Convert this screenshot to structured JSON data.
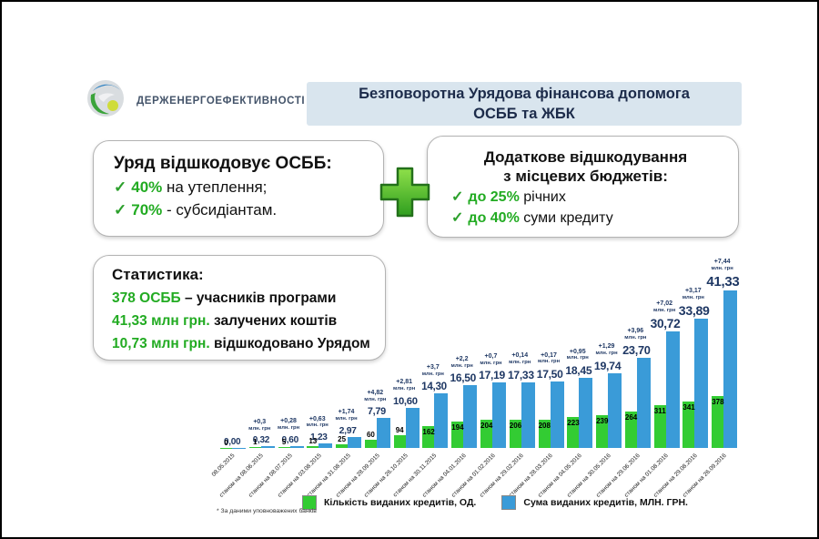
{
  "logo": {
    "text": "Держенергоефективності"
  },
  "title": {
    "line1": "Безповоротна Урядова фінансова допомога",
    "line2": "ОСББ та ЖБК"
  },
  "icons": {
    "check": "✓",
    "plus": "+"
  },
  "left_box": {
    "heading": "Уряд відшкодовує ОСББ:",
    "items": [
      {
        "highlight": "40%",
        "rest": " на утеплення;"
      },
      {
        "highlight": "70%",
        "rest": " - субсидіантам."
      }
    ]
  },
  "right_box": {
    "heading_line1": "Додаткове відшкодування",
    "heading_line2": "з місцевих бюджетів:",
    "items": [
      {
        "highlight": "до 25%",
        "rest": " річних"
      },
      {
        "highlight": "до 40%",
        "rest": " суми кредиту"
      }
    ]
  },
  "stats_box": {
    "heading": "Статистика:",
    "items": [
      {
        "highlight": "378 ОСББ",
        "rest": " – учасників програми"
      },
      {
        "highlight": "41,33 млн грн.",
        "rest": " залучених коштів"
      },
      {
        "highlight": "10,73 млн грн.",
        "rest": " відшкодовано Урядом"
      }
    ]
  },
  "footnote": "* За даними уповноважених банків",
  "chart_data": {
    "type": "bar",
    "categories": [
      "08.05.2015",
      "станом на 08.06.2015",
      "станом на 08.07.2015",
      "станом на 03.08.2015",
      "станом на 31.08.2015",
      "станом на 28.09.2015",
      "станом на 26.10.2015",
      "станом на 30.11.2015",
      "станом на 04.01.2016",
      "станом на 01.02.2016",
      "станом на 29.02.2016",
      "станом на 28.03.2016",
      "станом на 04.05.2016",
      "станом на 30.05.2016",
      "станом на 29.06.2016",
      "станом на 01.08.2016",
      "станом на 29.08.2016",
      "станом на 26.09.2016"
    ],
    "series": [
      {
        "name": "Кількість виданих кредитів, ОД.",
        "color": "#33cc33",
        "values": [
          0,
          1,
          5,
          13,
          25,
          60,
          94,
          162,
          194,
          204,
          206,
          208,
          223,
          239,
          264,
          311,
          341,
          378
        ]
      },
      {
        "name": "Сума виданих кредитів, МЛН. ГРН.",
        "color": "#3a9bd8",
        "values": [
          "0,00",
          "0,32",
          "0,60",
          "1,23",
          "2,97",
          "7,79",
          "10,60",
          "14,30",
          "16,50",
          "17,19",
          "17,33",
          "17,50",
          "18,45",
          "19,74",
          "23,70",
          "30,72",
          "33,89",
          "41,33"
        ]
      }
    ],
    "annotations": [
      null,
      "+0,3",
      "+0,28",
      "+0,63",
      "+1,74",
      "+4,82",
      "+2,81",
      "+3,7",
      "+2,2",
      "+0,7",
      "+0,14",
      "+0,17",
      "+0,95",
      "+1,29",
      "+3,96",
      "+7,02",
      "+3,17",
      "+7,44"
    ],
    "annotation_unit": "млн. грн",
    "ylim_count_axis": [
      0,
      378
    ],
    "ylim_sum_axis": [
      0,
      41.33
    ],
    "grid": false,
    "legend_position": "bottom"
  }
}
